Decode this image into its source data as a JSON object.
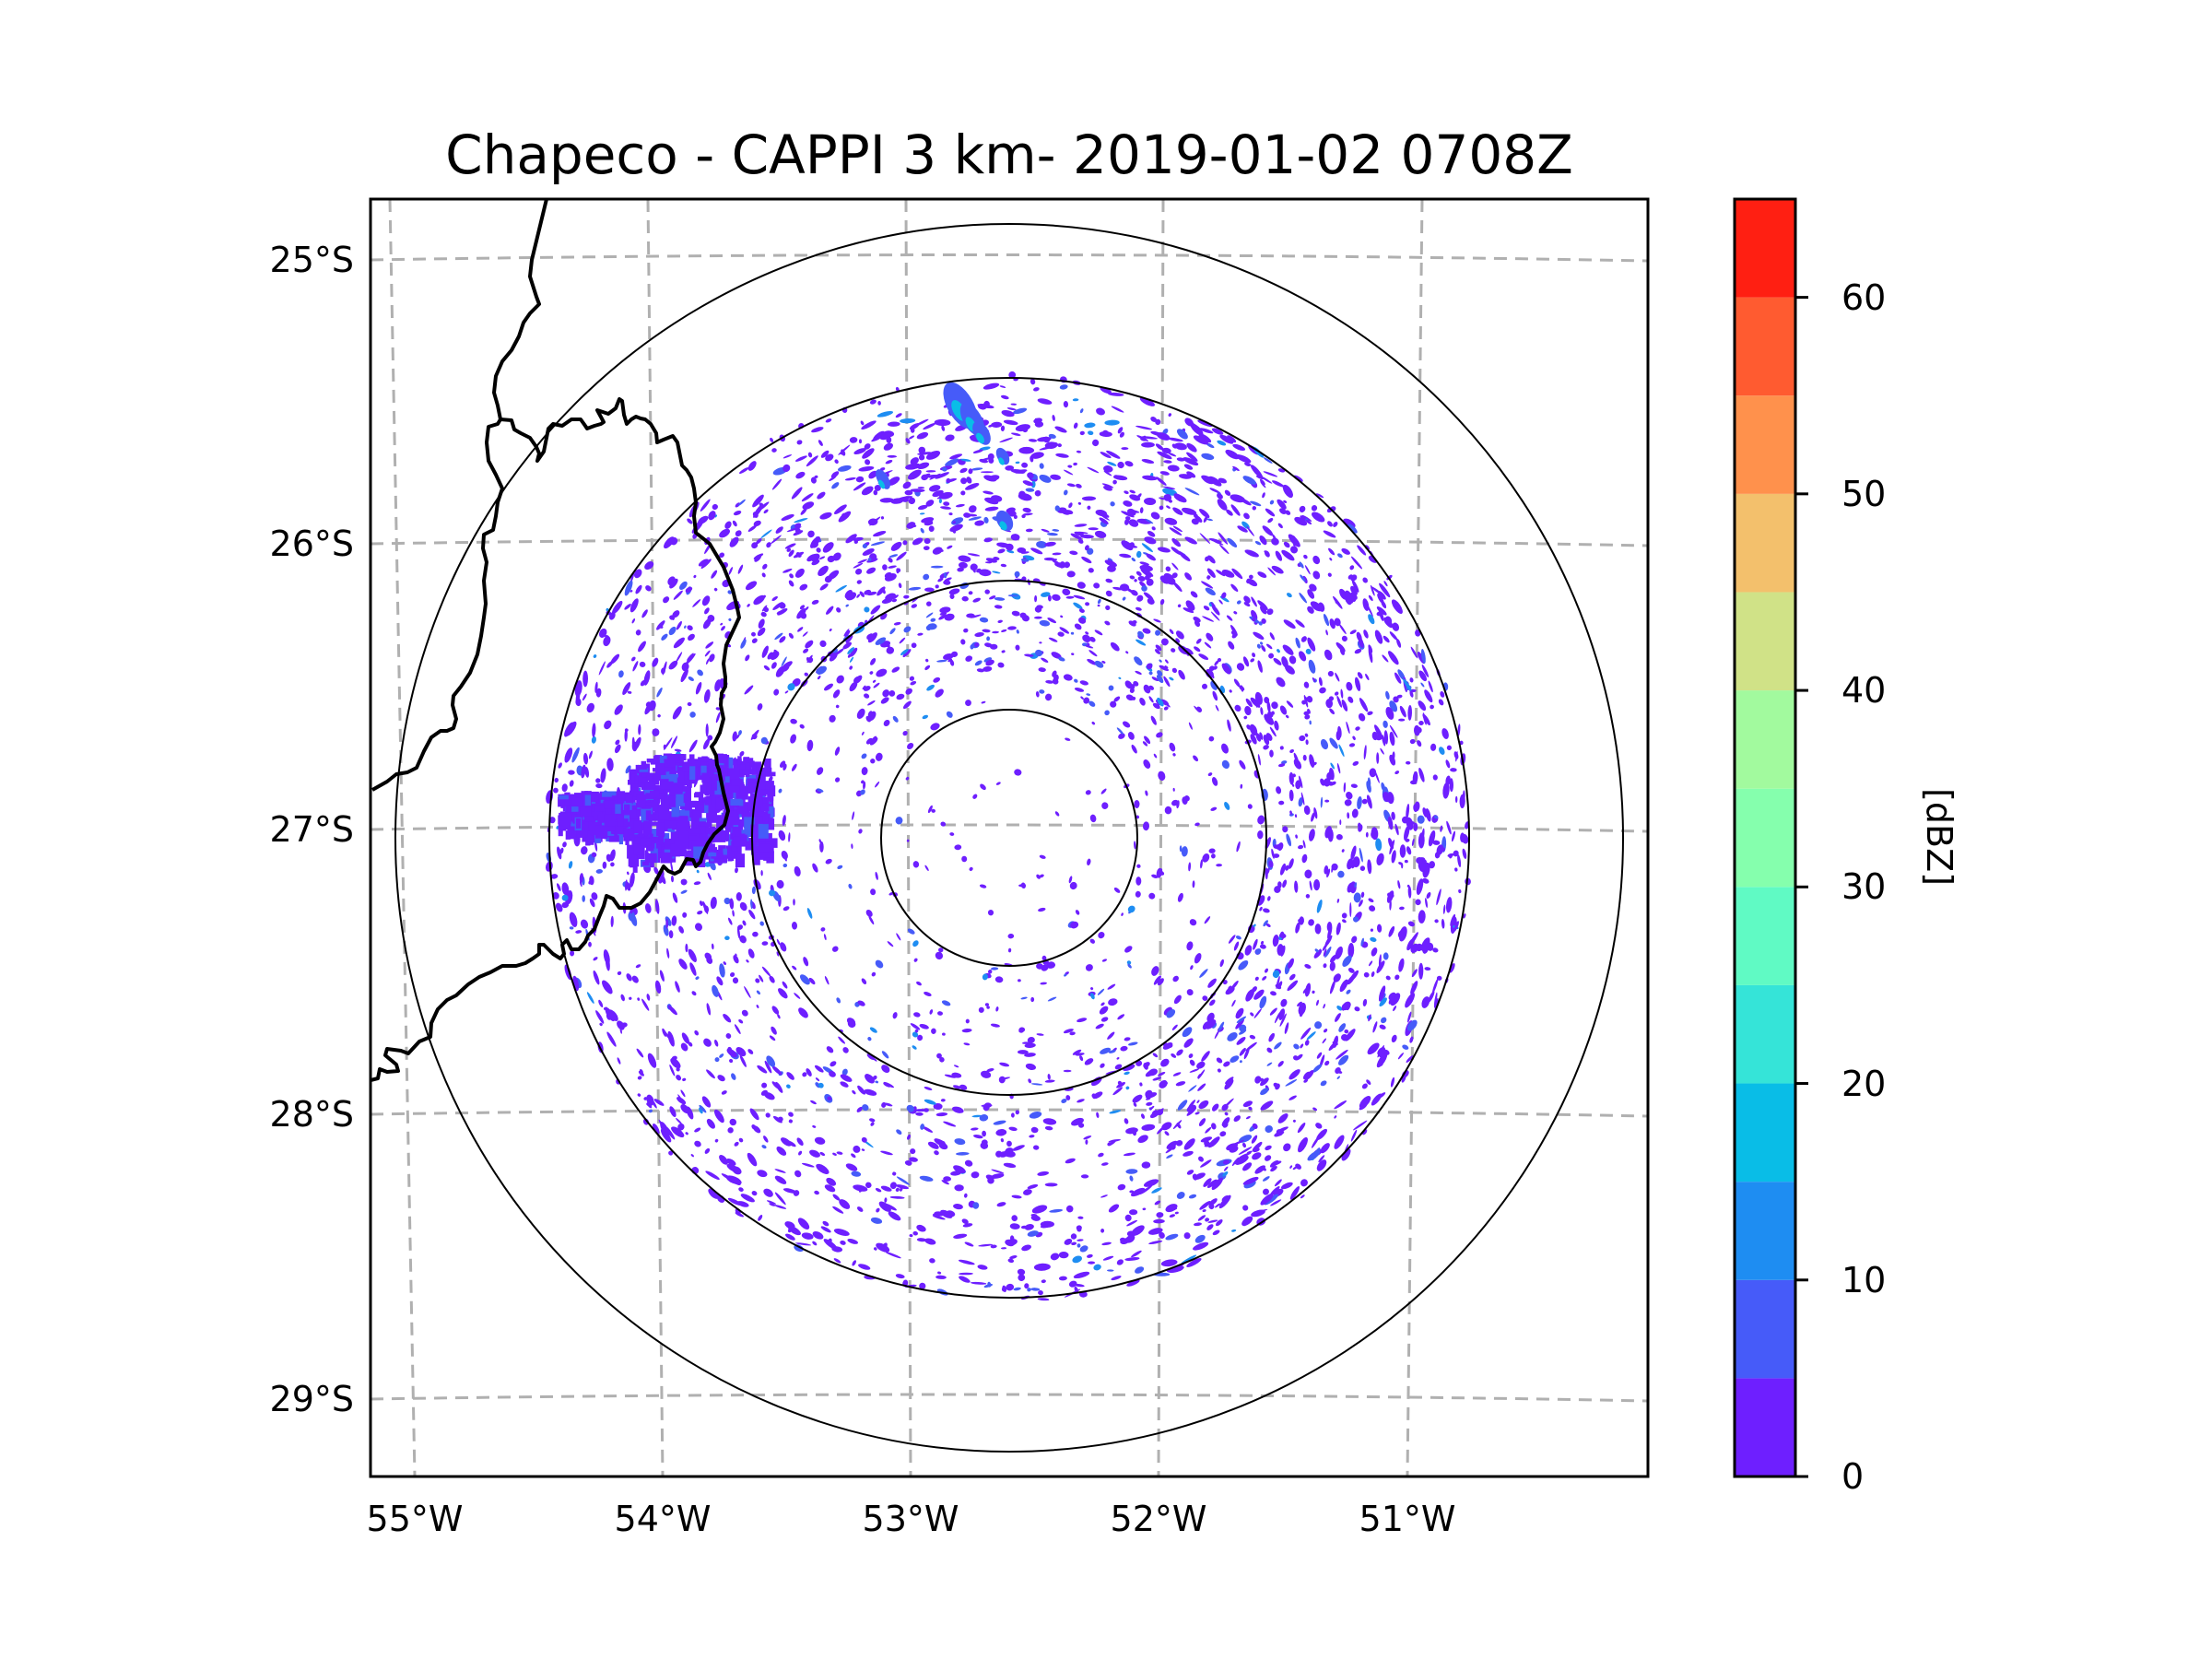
{
  "chart_data": {
    "type": "heatmap",
    "subtype": "radar-ppi-map",
    "title": "Chapeco - CAPPI 3 km- 2019-01-02 0708Z",
    "xlabel": "",
    "ylabel": "",
    "x_ticks": [
      "55°W",
      "54°W",
      "53°W",
      "52°W",
      "51°W"
    ],
    "x_tick_values": [
      -55,
      -54,
      -53,
      -52,
      -51
    ],
    "y_ticks": [
      "25°S",
      "26°S",
      "27°S",
      "28°S",
      "29°S"
    ],
    "y_tick_values": [
      -25,
      -26,
      -27,
      -28,
      -29
    ],
    "xlim": [
      -55.2,
      -50.0
    ],
    "ylim": [
      -29.3,
      -24.8
    ],
    "grid": true,
    "grid_style": "dashed",
    "grid_color": "#b0b0b0",
    "radar_site": "Chapeco",
    "radar_center_approx": {
      "lon": -52.6,
      "lat": -27.03
    },
    "range_rings_count": 4,
    "colorbar": {
      "label": "[dBZ]",
      "placement": "right",
      "min": 0,
      "max": 65,
      "ticks": [
        0,
        10,
        20,
        30,
        40,
        50,
        60
      ],
      "tick_labels": [
        "0",
        "10",
        "20",
        "30",
        "40",
        "50",
        "60"
      ],
      "bins": [
        {
          "from": 0,
          "to": 5,
          "color": "#6e1fff"
        },
        {
          "from": 5,
          "to": 10,
          "color": "#465bf9"
        },
        {
          "from": 10,
          "to": 15,
          "color": "#1e8df2"
        },
        {
          "from": 15,
          "to": 20,
          "color": "#09bde7"
        },
        {
          "from": 20,
          "to": 25,
          "color": "#35e4d8"
        },
        {
          "from": 25,
          "to": 30,
          "color": "#60fac4"
        },
        {
          "from": 30,
          "to": 35,
          "color": "#85ffad"
        },
        {
          "from": 35,
          "to": 40,
          "color": "#a2fa9e"
        },
        {
          "from": 40,
          "to": 45,
          "color": "#d0e287"
        },
        {
          "from": 45,
          "to": 50,
          "color": "#f3c06c"
        },
        {
          "from": 50,
          "to": 55,
          "color": "#ff914c"
        },
        {
          "from": 55,
          "to": 60,
          "color": "#ff5b30"
        },
        {
          "from": 60,
          "to": 65,
          "color": "#ff1f12"
        }
      ]
    },
    "echo_summary": {
      "dominant_range_dbz": [
        0,
        10
      ],
      "max_observed_dbz_approx": 25,
      "features": [
        "widespread weak scattered echoes (0-5 dBZ) across radar coverage",
        "denser echo band to the north between second and third range rings",
        "strong ground-clutter-like block west of radar near 54°W 27°S",
        "small cells of 10-25 dBZ near 53°W 25.5°S"
      ]
    },
    "boundaries": "country/state borders drawn as black lines in the west"
  }
}
